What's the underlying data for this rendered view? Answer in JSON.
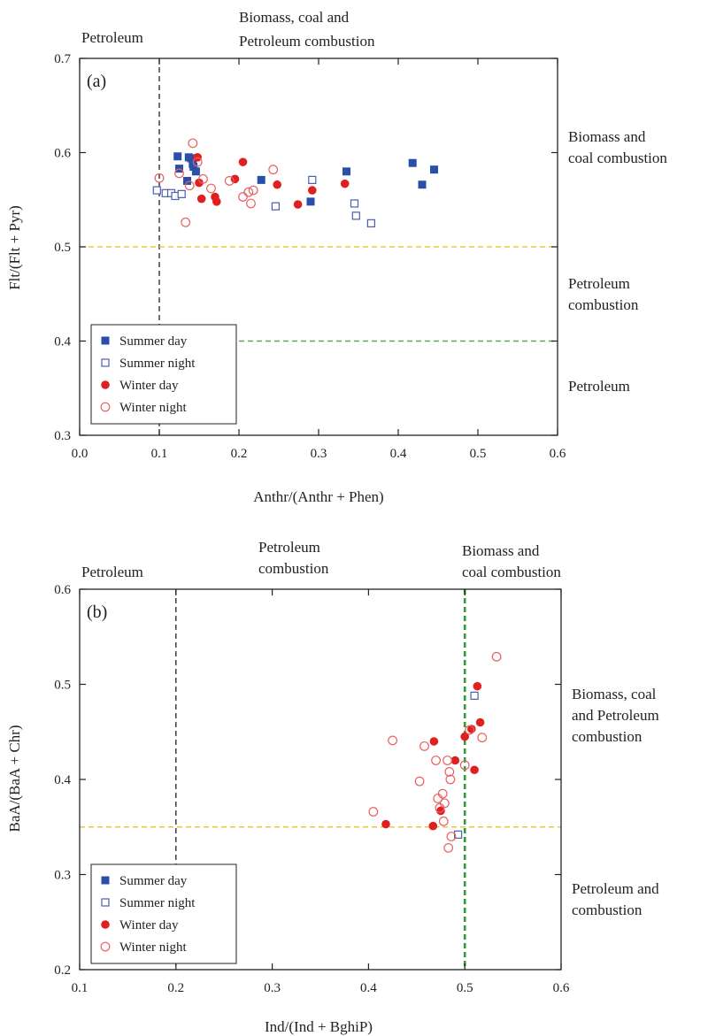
{
  "chart_data": [
    {
      "type": "scatter",
      "panel_label": "(a)",
      "xlabel": "Anthr/(Anthr + Phen)",
      "ylabel": "Flt/(Flt + Pyr)",
      "xlim": [
        0.0,
        0.6
      ],
      "ylim": [
        0.3,
        0.7
      ],
      "xticks": [
        "0.0",
        "0.1",
        "0.2",
        "0.3",
        "0.4",
        "0.5",
        "0.6"
      ],
      "yticks": [
        "0.3",
        "0.4",
        "0.5",
        "0.6",
        "0.7"
      ],
      "vlines": [
        {
          "x": 0.1,
          "color": "#222222"
        }
      ],
      "hlines": [
        {
          "y": 0.5,
          "x_from": 0.0,
          "x_to": 0.6,
          "color": "#e8c840"
        },
        {
          "y": 0.4,
          "x_from": 0.1,
          "x_to": 0.6,
          "color": "#5aa85a"
        }
      ],
      "region_labels": [
        {
          "text": "Petroleum",
          "pos": "top-left"
        },
        {
          "text": "Biomass, coal and",
          "pos": "top-center-1"
        },
        {
          "text": "Petroleum combustion",
          "pos": "top-center-2"
        },
        {
          "text": "Biomass and",
          "pos": "right-1"
        },
        {
          "text": "coal combustion",
          "pos": "right-2"
        },
        {
          "text": "Petroleum",
          "pos": "right-3"
        },
        {
          "text": "combustion",
          "pos": "right-4"
        },
        {
          "text": "Petroleum",
          "pos": "right-5"
        }
      ],
      "legend": [
        "Summer day",
        "Summer night",
        "Winter day",
        "Winter night"
      ],
      "legend_position": "bottom-left",
      "series": [
        {
          "name": "Summer day",
          "color": "#2a4fa8",
          "marker": "square-filled",
          "points": [
            [
              0.123,
              0.596
            ],
            [
              0.125,
              0.583
            ],
            [
              0.135,
              0.57
            ],
            [
              0.137,
              0.595
            ],
            [
              0.14,
              0.594
            ],
            [
              0.142,
              0.588
            ],
            [
              0.143,
              0.585
            ],
            [
              0.146,
              0.58
            ],
            [
              0.228,
              0.571
            ],
            [
              0.29,
              0.548
            ],
            [
              0.335,
              0.58
            ],
            [
              0.418,
              0.589
            ],
            [
              0.43,
              0.566
            ],
            [
              0.445,
              0.582
            ]
          ]
        },
        {
          "name": "Summer night",
          "color": "#4a5fb0",
          "marker": "square-open",
          "points": [
            [
              0.097,
              0.56
            ],
            [
              0.108,
              0.557
            ],
            [
              0.115,
              0.557
            ],
            [
              0.12,
              0.554
            ],
            [
              0.128,
              0.556
            ],
            [
              0.246,
              0.543
            ],
            [
              0.292,
              0.571
            ],
            [
              0.345,
              0.546
            ],
            [
              0.347,
              0.533
            ],
            [
              0.366,
              0.525
            ]
          ]
        },
        {
          "name": "Winter day",
          "color": "#e02020",
          "marker": "circle-filled",
          "points": [
            [
              0.148,
              0.595
            ],
            [
              0.15,
              0.568
            ],
            [
              0.153,
              0.551
            ],
            [
              0.17,
              0.553
            ],
            [
              0.172,
              0.548
            ],
            [
              0.195,
              0.572
            ],
            [
              0.205,
              0.59
            ],
            [
              0.248,
              0.566
            ],
            [
              0.274,
              0.545
            ],
            [
              0.292,
              0.56
            ],
            [
              0.333,
              0.567
            ]
          ]
        },
        {
          "name": "Winter night",
          "color": "#e86060",
          "marker": "circle-open",
          "points": [
            [
              0.1,
              0.573
            ],
            [
              0.125,
              0.578
            ],
            [
              0.133,
              0.526
            ],
            [
              0.142,
              0.61
            ],
            [
              0.148,
              0.59
            ],
            [
              0.155,
              0.572
            ],
            [
              0.165,
              0.562
            ],
            [
              0.188,
              0.57
            ],
            [
              0.205,
              0.553
            ],
            [
              0.212,
              0.558
            ],
            [
              0.215,
              0.546
            ],
            [
              0.218,
              0.56
            ],
            [
              0.243,
              0.582
            ],
            [
              0.138,
              0.565
            ]
          ]
        }
      ]
    },
    {
      "type": "scatter",
      "panel_label": "(b)",
      "xlabel": "Ind/(Ind + BghiP)",
      "ylabel": "BaA/(BaA + Chr)",
      "xlim": [
        0.1,
        0.6
      ],
      "ylim": [
        0.2,
        0.6
      ],
      "xticks": [
        "0.1",
        "0.2",
        "0.3",
        "0.4",
        "0.5",
        "0.6"
      ],
      "yticks": [
        "0.2",
        "0.3",
        "0.4",
        "0.5",
        "0.6"
      ],
      "vlines": [
        {
          "x": 0.2,
          "color": "#222222"
        },
        {
          "x": 0.5,
          "color": "#2e9a3a"
        }
      ],
      "hlines": [
        {
          "y": 0.35,
          "x_from": 0.1,
          "x_to": 0.6,
          "color": "#e8c840"
        }
      ],
      "region_labels": [
        {
          "text": "Petroleum",
          "pos": "top-left"
        },
        {
          "text": "Petroleum",
          "pos": "top-center-1"
        },
        {
          "text": "combustion",
          "pos": "top-center-2"
        },
        {
          "text": "Biomass and",
          "pos": "top-right-1"
        },
        {
          "text": "coal combustion",
          "pos": "top-right-2"
        },
        {
          "text": "Biomass, coal",
          "pos": "right-1"
        },
        {
          "text": "and Petroleum",
          "pos": "right-2"
        },
        {
          "text": "combustion",
          "pos": "right-3"
        },
        {
          "text": "Petroleum and",
          "pos": "right-4"
        },
        {
          "text": "combustion",
          "pos": "right-5"
        }
      ],
      "legend": [
        "Summer day",
        "Summer night",
        "Winter day",
        "Winter night"
      ],
      "legend_position": "bottom-left",
      "series": [
        {
          "name": "Summer day",
          "color": "#2a4fa8",
          "marker": "square-filled",
          "points": []
        },
        {
          "name": "Summer night",
          "color": "#4a5fb0",
          "marker": "square-open",
          "points": [
            [
              0.51,
              0.488
            ],
            [
              0.493,
              0.342
            ]
          ]
        },
        {
          "name": "Winter day",
          "color": "#e02020",
          "marker": "circle-filled",
          "points": [
            [
              0.418,
              0.353
            ],
            [
              0.467,
              0.351
            ],
            [
              0.468,
              0.44
            ],
            [
              0.475,
              0.367
            ],
            [
              0.49,
              0.42
            ],
            [
              0.5,
              0.445
            ],
            [
              0.507,
              0.453
            ],
            [
              0.51,
              0.41
            ],
            [
              0.513,
              0.498
            ],
            [
              0.516,
              0.46
            ]
          ]
        },
        {
          "name": "Winter night",
          "color": "#e86060",
          "marker": "circle-open",
          "points": [
            [
              0.405,
              0.366
            ],
            [
              0.425,
              0.441
            ],
            [
              0.453,
              0.398
            ],
            [
              0.458,
              0.435
            ],
            [
              0.47,
              0.42
            ],
            [
              0.472,
              0.38
            ],
            [
              0.474,
              0.37
            ],
            [
              0.477,
              0.385
            ],
            [
              0.478,
              0.356
            ],
            [
              0.479,
              0.375
            ],
            [
              0.482,
              0.42
            ],
            [
              0.483,
              0.328
            ],
            [
              0.484,
              0.408
            ],
            [
              0.486,
              0.34
            ],
            [
              0.485,
              0.4
            ],
            [
              0.5,
              0.415
            ],
            [
              0.505,
              0.452
            ],
            [
              0.518,
              0.444
            ],
            [
              0.533,
              0.529
            ]
          ]
        }
      ]
    }
  ]
}
